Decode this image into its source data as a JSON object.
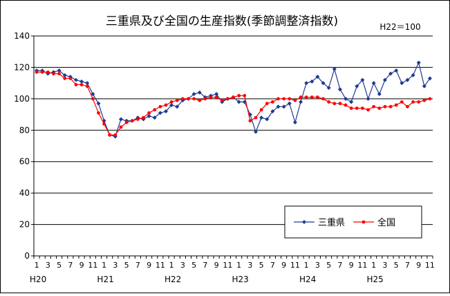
{
  "chart_data": {
    "type": "line",
    "title": "三重県及び全国の生産指数(季節調整済指数)",
    "note": "H22＝100",
    "ylim": [
      0,
      140
    ],
    "yticks": [
      0,
      20,
      40,
      60,
      80,
      100,
      120,
      140
    ],
    "grid": "horizontal",
    "legend_position": "bottom-right",
    "x_month_labels": [
      "1",
      "3",
      "5",
      "7",
      "9",
      "11",
      "1",
      "3",
      "5",
      "7",
      "9",
      "11",
      "1",
      "3",
      "5",
      "7",
      "9",
      "11",
      "1",
      "3",
      "5",
      "7",
      "9",
      "11",
      "1",
      "3",
      "5",
      "7",
      "9",
      "11",
      "1",
      "3",
      "5",
      "7",
      "9",
      "11"
    ],
    "x_year_labels": [
      "H20",
      "H21",
      "H22",
      "H23",
      "H24",
      "H25"
    ],
    "series": [
      {
        "name": "三重県",
        "color": "#1f3a93",
        "marker": "diamond",
        "values": [
          118,
          118,
          116,
          117,
          118,
          115,
          114,
          112,
          111,
          110,
          103,
          97,
          86,
          77,
          76,
          87,
          86,
          86,
          88,
          87,
          89,
          88,
          91,
          92,
          96,
          95,
          99,
          100,
          103,
          104,
          101,
          102,
          103,
          98,
          100,
          101,
          98,
          98,
          90,
          79,
          88,
          87,
          92,
          95,
          95,
          97,
          85,
          98,
          110,
          111,
          114,
          110,
          107,
          119,
          106,
          100,
          98,
          108,
          112,
          100,
          110,
          103,
          112,
          116,
          118,
          110,
          112,
          115,
          123,
          108,
          113
        ]
      },
      {
        "name": "全国",
        "color": "#ff0000",
        "marker": "circle",
        "values": [
          117,
          117,
          117,
          116,
          116,
          113,
          113,
          109,
          109,
          108,
          100,
          91,
          84,
          77,
          77,
          82,
          85,
          86,
          87,
          88,
          91,
          93,
          95,
          96,
          98,
          99,
          100,
          100,
          100,
          99,
          100,
          101,
          101,
          99,
          100,
          101,
          102,
          102,
          86,
          88,
          93,
          97,
          98,
          100,
          100,
          100,
          99,
          101,
          101,
          101,
          101,
          100,
          98,
          97,
          97,
          96,
          94,
          94,
          94,
          93,
          95,
          94,
          95,
          95,
          96,
          98,
          95,
          98,
          98,
          99,
          100
        ]
      }
    ]
  }
}
